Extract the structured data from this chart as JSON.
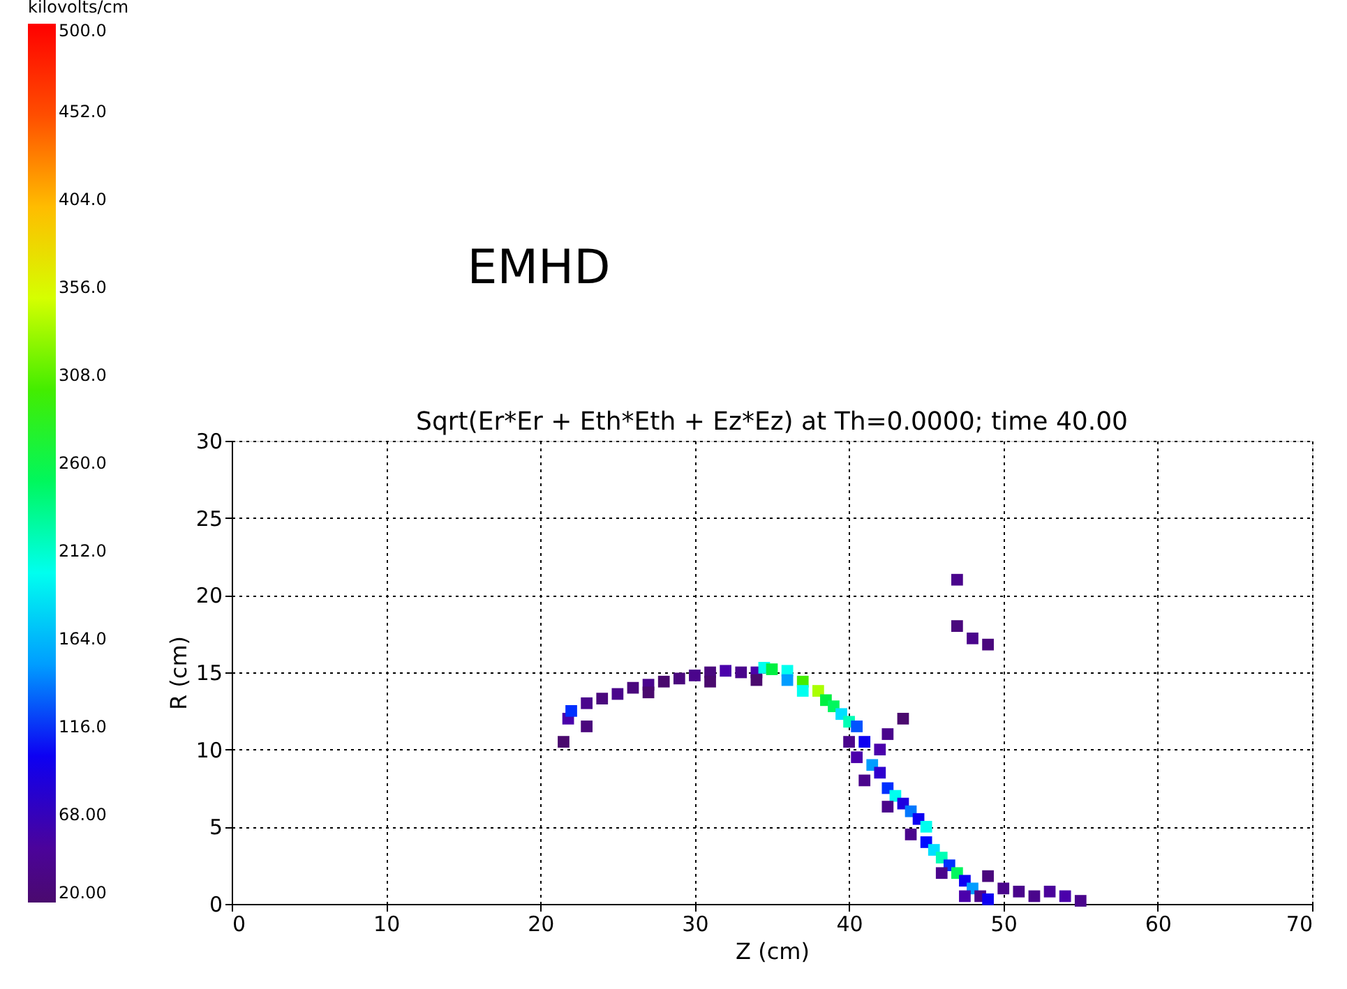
{
  "chart_data": {
    "type": "scatter",
    "title": "EMHD",
    "subtitle": "Sqrt(Er*Er +  Eth*Eth + Ez*Ez) at Th=0.0000; time 40.00",
    "xlabel": "Z (cm)",
    "ylabel": "R (cm)",
    "clabel": "kilovolts/cm",
    "xlim": [
      0,
      70
    ],
    "xticks": [
      0,
      10,
      20,
      30,
      40,
      50,
      60,
      70
    ],
    "ylim": [
      0,
      30
    ],
    "yticks": [
      0,
      5,
      10,
      15,
      20,
      25,
      30
    ],
    "clim": [
      20,
      500
    ],
    "cticks": [
      {
        "value": 20,
        "label": "20.00"
      },
      {
        "value": 68,
        "label": "68.00"
      },
      {
        "value": 116,
        "label": "116.0"
      },
      {
        "value": 164,
        "label": "164.0"
      },
      {
        "value": 212,
        "label": "212.0"
      },
      {
        "value": 260,
        "label": "260.0"
      },
      {
        "value": 308,
        "label": "308.0"
      },
      {
        "value": 356,
        "label": "356.0"
      },
      {
        "value": 404,
        "label": "404.0"
      },
      {
        "value": 452,
        "label": "452.0"
      },
      {
        "value": 500,
        "label": "500.0"
      }
    ],
    "grid": true,
    "marker": "square",
    "series": [
      {
        "x": [
          21.5,
          21.8,
          22,
          23,
          24,
          25,
          26,
          27,
          28,
          29,
          30,
          31,
          32,
          33,
          34,
          34.5,
          35,
          36,
          36,
          37,
          37,
          38,
          38.5,
          39,
          39.5,
          40,
          40.5,
          40,
          41,
          42,
          42.5,
          43.5,
          40.5,
          41.5,
          42,
          41,
          42.5,
          43,
          43.5,
          42.5,
          44,
          44.5,
          45,
          44,
          45,
          45.5,
          46,
          46.5,
          46,
          47,
          47.5,
          48,
          47.5,
          48.5,
          49,
          50,
          49,
          51,
          52,
          53,
          54,
          55,
          23,
          34,
          31,
          27,
          47,
          48,
          49,
          47
        ],
        "values": [
          10.5,
          12,
          12.5,
          13,
          13.3,
          13.6,
          14,
          14.2,
          14.4,
          14.6,
          14.8,
          15,
          15.1,
          15,
          15,
          15.3,
          15.2,
          15.1,
          14.5,
          14.4,
          13.8,
          13.8,
          13.2,
          12.8,
          12.3,
          11.8,
          11.5,
          10.5,
          10.5,
          10,
          11,
          12,
          9.5,
          9,
          8.5,
          8,
          7.5,
          7,
          6.5,
          6.3,
          6,
          5.5,
          5,
          4.5,
          4,
          3.5,
          3,
          2.5,
          2,
          2,
          1.5,
          1,
          0.5,
          0.5,
          1.8,
          1,
          0.3,
          0.8,
          0.5,
          0.8,
          0.5,
          0.2,
          11.5,
          14.5,
          14.4,
          13.7,
          18,
          17.2,
          16.8,
          21
        ],
        "cvalues": [
          20,
          60,
          120,
          40,
          30,
          40,
          30,
          40,
          20,
          30,
          40,
          30,
          60,
          40,
          60,
          200,
          260,
          200,
          150,
          300,
          200,
          330,
          260,
          250,
          180,
          220,
          130,
          40,
          100,
          60,
          40,
          20,
          60,
          150,
          80,
          40,
          120,
          200,
          90,
          40,
          140,
          100,
          200,
          40,
          110,
          180,
          220,
          120,
          40,
          250,
          100,
          150,
          60,
          40,
          30,
          40,
          100,
          40,
          40,
          50,
          60,
          40,
          30,
          20,
          20,
          20,
          30,
          40,
          30,
          40
        ]
      }
    ]
  }
}
